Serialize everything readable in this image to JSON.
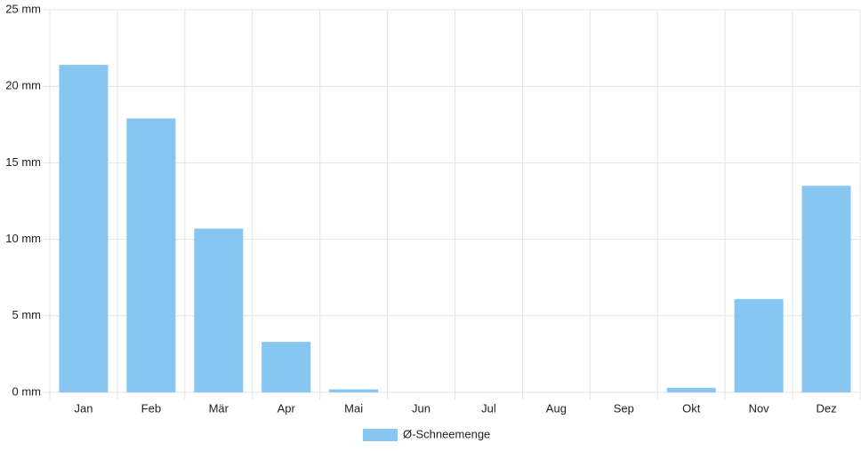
{
  "chart_data": {
    "type": "bar",
    "categories": [
      "Jan",
      "Feb",
      "Mär",
      "Apr",
      "Mai",
      "Jun",
      "Jul",
      "Aug",
      "Sep",
      "Okt",
      "Nov",
      "Dez"
    ],
    "series": [
      {
        "name": "Ø-Schneemenge",
        "color": "#88c6f2",
        "values": [
          21.4,
          17.9,
          10.7,
          3.3,
          0.2,
          0,
          0,
          0,
          0,
          0.3,
          6.1,
          13.5
        ]
      }
    ],
    "ylim": [
      0,
      25
    ],
    "yticks": [
      {
        "value": 0,
        "label": "0 mm"
      },
      {
        "value": 5,
        "label": "5 mm"
      },
      {
        "value": 10,
        "label": "10 mm"
      },
      {
        "value": 15,
        "label": "15 mm"
      },
      {
        "value": 20,
        "label": "20 mm"
      },
      {
        "value": 25,
        "label": "25 mm"
      }
    ],
    "grid": true,
    "legend": "bottom"
  }
}
